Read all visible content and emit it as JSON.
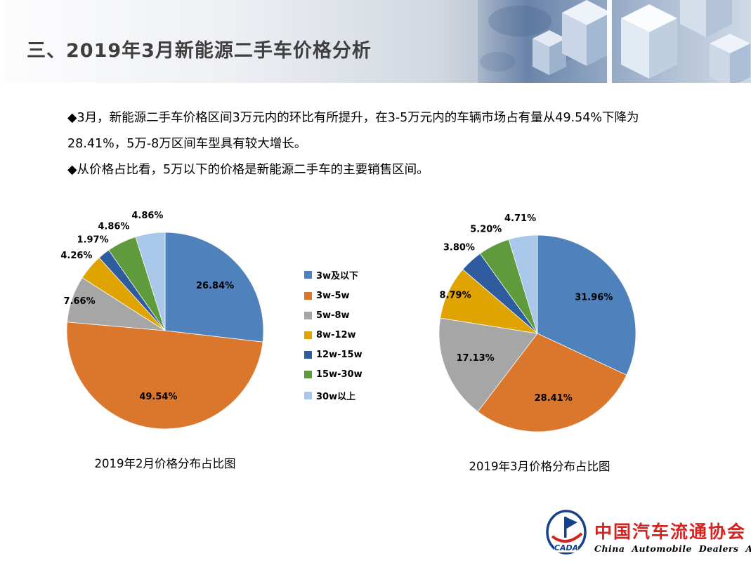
{
  "slide": {
    "title": "三、2019年3月新能源二手车价格分析",
    "body_lines": [
      "◆3月，新能源二手车价格区间3万元内的环比有所提升，在3-5万元内的车辆市场占有量从49.54%下降为",
      "28.41%，5万-8万区间车型具有较大增长。",
      "◆从价格占比看，5万以下的价格是新能源二手车的主要销售区间。"
    ]
  },
  "legend": {
    "entries": [
      "3w及以下",
      "3w-5w",
      "5w-8w",
      "8w-12w",
      "12w-15w",
      "15w-30w",
      "30w以上"
    ]
  },
  "colors": [
    "#4F81BD",
    "#DB772C",
    "#A6A6A6",
    "#E0A400",
    "#2E5C9E",
    "#5F9A3C",
    "#A9C7E9"
  ],
  "chart_data": [
    {
      "type": "pie",
      "title": "2019年2月价格分布占比图",
      "categories": [
        "3w及以下",
        "3w-5w",
        "5w-8w",
        "8w-12w",
        "12w-15w",
        "15w-30w",
        "30w以上"
      ],
      "values": [
        26.84,
        49.54,
        7.66,
        4.26,
        1.97,
        4.86,
        4.86
      ],
      "data_labels": [
        "26.84%",
        "49.54%",
        "7.66%",
        "4.26%",
        "1.97%",
        "4.86%",
        "4.86%"
      ],
      "legend_position": "right-of-chart"
    },
    {
      "type": "pie",
      "title": "2019年3月价格分布占比图",
      "categories": [
        "3w及以下",
        "3w-5w",
        "5w-8w",
        "8w-12w",
        "12w-15w",
        "15w-30w",
        "30w以上"
      ],
      "values": [
        31.96,
        28.41,
        17.13,
        8.79,
        3.8,
        5.2,
        4.71
      ],
      "data_labels": [
        "31.96%",
        "28.41%",
        "17.13%",
        "8.79%",
        "3.80%",
        "5.20%",
        "4.71%"
      ],
      "legend_position": "shared"
    }
  ],
  "logo": {
    "abbr": "CADA",
    "org_cn": "中国汽车流通协会",
    "org_en": "China Automobile Dealers Association",
    "red": "#d7231f",
    "blue": "#16418f"
  }
}
